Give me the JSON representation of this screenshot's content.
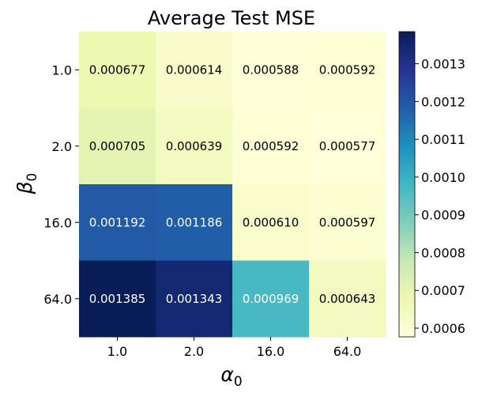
{
  "chart_data": {
    "type": "heatmap",
    "title": "Average Test MSE",
    "xlabel_symbol": "α",
    "xlabel_sub": "0",
    "ylabel_symbol": "β",
    "ylabel_sub": "0",
    "x_categories": [
      "1.0",
      "2.0",
      "16.0",
      "64.0"
    ],
    "y_categories": [
      "1.0",
      "2.0",
      "16.0",
      "64.0"
    ],
    "values": [
      [
        0.000677,
        0.000614,
        0.000588,
        0.000592
      ],
      [
        0.000705,
        0.000639,
        0.000592,
        0.000577
      ],
      [
        0.001192,
        0.001186,
        0.00061,
        0.000597
      ],
      [
        0.001385,
        0.001343,
        0.000969,
        0.000643
      ]
    ],
    "cell_labels": [
      [
        "0.000677",
        "0.000614",
        "0.000588",
        "0.000592"
      ],
      [
        "0.000705",
        "0.000639",
        "0.000592",
        "0.000577"
      ],
      [
        "0.001192",
        "0.001186",
        "0.000610",
        "0.000597"
      ],
      [
        "0.001385",
        "0.001343",
        "0.000969",
        "0.000643"
      ]
    ],
    "colormap": "YlGnBu",
    "colormap_stops": [
      "#ffffd9",
      "#edf8b1",
      "#c7e9b4",
      "#7fcdbb",
      "#41b6c4",
      "#1d91c0",
      "#225ea8",
      "#253494",
      "#081d58"
    ],
    "vmin": 0.000577,
    "vmax": 0.001385,
    "colorbar_ticks": [
      0.0006,
      0.0007,
      0.0008,
      0.0009,
      0.001,
      0.0011,
      0.0012,
      0.0013
    ],
    "colorbar_tick_labels": [
      "0.0006",
      "0.0007",
      "0.0008",
      "0.0009",
      "0.0010",
      "0.0011",
      "0.0012",
      "0.0013"
    ],
    "grid": false,
    "light_text_color": "#ffffff",
    "dark_text_color": "#000000"
  }
}
